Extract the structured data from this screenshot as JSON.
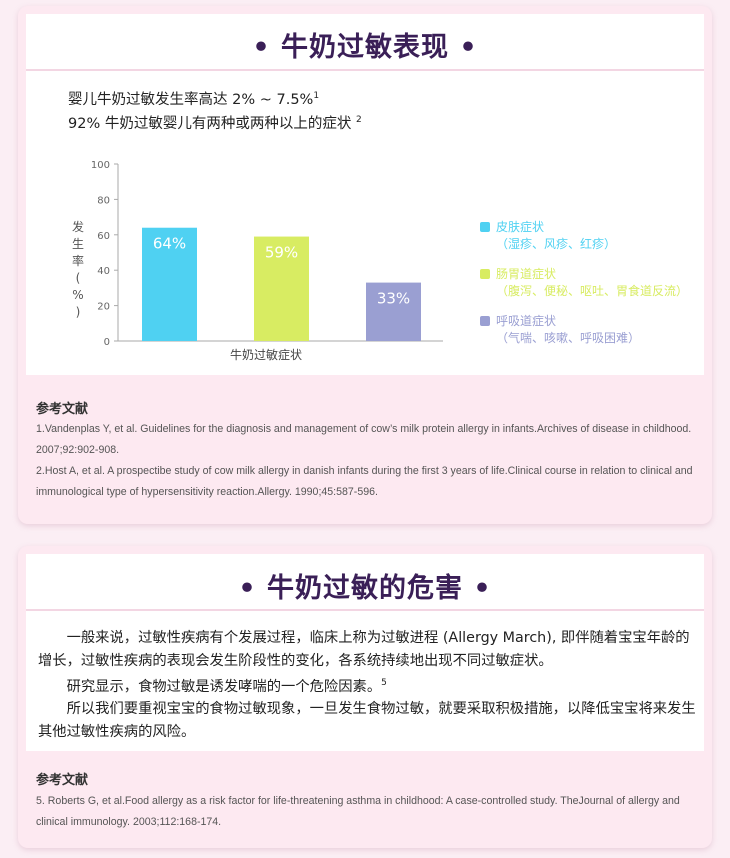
{
  "section1": {
    "title": "• 牛奶过敏表现 •",
    "stat1": "婴儿牛奶过敏发生率高达 2% ~ 7.5%",
    "stat1_sup": "1",
    "stat2": "92% 牛奶过敏婴儿有两种或两种以上的症状",
    "stat2_sup": "2",
    "references": {
      "title": "参考文献",
      "items": [
        "1.Vandenplas Y, et al. Guidelines for the diagnosis and management of cow’s milk protein allergy in infants.Archives of disease in childhood. 2007;92:902-908.",
        "2.Host A, et al. A prospectibe study of cow milk allergy in danish infants during the first 3 years of life.Clinical course in relation to clinical and immunological type of hypersensitivity reaction.Allergy. 1990;45:587-596."
      ]
    }
  },
  "chart_data": {
    "type": "bar",
    "categories": [
      "皮肤症状",
      "肠胃道症状",
      "呼吸道症状"
    ],
    "values": [
      64,
      59,
      33
    ],
    "value_labels": [
      "64%",
      "59%",
      "33%"
    ],
    "colors": [
      "#4fd1f2",
      "#d8ec62",
      "#9a9fd2"
    ],
    "ylabel_chars": [
      "发",
      "生",
      "率",
      "(",
      "%",
      ")"
    ],
    "xlabel": "牛奶过敏症状",
    "ylim": [
      0,
      100
    ],
    "yticks": [
      0,
      20,
      40,
      60,
      80,
      100
    ],
    "legend": [
      {
        "label": "皮肤症状",
        "sub": "（湿疹、风疹、红疹）",
        "color": "#4fd1f2"
      },
      {
        "label": "肠胃道症状",
        "sub": "（腹泻、便秘、呕吐、胃食道反流）",
        "color": "#d8ec62"
      },
      {
        "label": "呼吸道症状",
        "sub": "（气喘、咳嗽、呼吸困难）",
        "color": "#9a9fd2"
      }
    ]
  },
  "section2": {
    "title": "• 牛奶过敏的危害 •",
    "para1": "一般来说，过敏性疾病有个发展过程，临床上称为过敏进程 (Allergy March), 即伴随着宝宝年龄的增长，过敏性疾病的表现会发生阶段性的变化，各系统持续地出现不同过敏症状。",
    "para2": "研究显示，食物过敏是诱发哮喘的一个危险因素。",
    "para2_sup": "5",
    "para3": "所以我们要重视宝宝的食物过敏现象，一旦发生食物过敏，就要采取积极措施，以降低宝宝将来发生其他过敏性疾病的风险。",
    "references": {
      "title": "参考文献",
      "items": [
        "5. Roberts G, et al.Food allergy as a risk factor for life-threatening asthma in childhood: A case-controlled study. TheJournal of allergy and clinical immunology. 2003;112:168-174."
      ]
    }
  }
}
